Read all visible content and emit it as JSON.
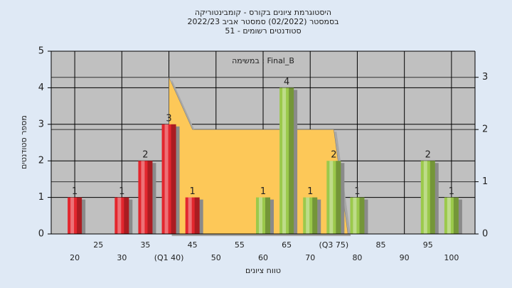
{
  "chart_data": {
    "type": "bar",
    "title": [
      "היסטוגרמת ציונים בקורס - קומבינטוריקה",
      "בסמסטר  (02/2022)  סמסטר אביב 2022/23",
      "סטודנטים רשומים - 51"
    ],
    "annotation": "במשימה : Final_B",
    "y_label": "מספר סטודנטים",
    "x_label": "טווח ציונים",
    "x": [
      20,
      30,
      35,
      40,
      45,
      60,
      65,
      70,
      75,
      80,
      95,
      100
    ],
    "values": [
      1,
      1,
      2,
      3,
      1,
      1,
      4,
      1,
      2,
      1,
      2,
      1
    ],
    "colors": [
      "#e3262d",
      "#e3262d",
      "#e3262d",
      "#e3262d",
      "#e3262d",
      "#9bc94b",
      "#9bc94b",
      "#9bc94b",
      "#9bc94b",
      "#9bc94b",
      "#9bc94b",
      "#9bc94b"
    ],
    "overlay": {
      "type": "area",
      "axis": "y2",
      "color": "#fdc858",
      "x": [
        40,
        40,
        45,
        75,
        78
      ],
      "values": [
        0,
        3,
        2,
        2,
        0
      ]
    },
    "xlim": [
      15,
      105
    ],
    "xticks": [
      20,
      25,
      30,
      35,
      {
        "value": 40,
        "label": "(Q1 40)"
      },
      45,
      50,
      55,
      60,
      65,
      70,
      {
        "value": 75,
        "label": "(Q3 75)"
      },
      80,
      85,
      90,
      95,
      100
    ],
    "ylim": [
      0,
      5
    ],
    "yticks": [
      0,
      1,
      2,
      3,
      4,
      5
    ],
    "y2lim": [
      0,
      3.5
    ],
    "y2ticks": [
      0,
      1,
      2,
      3
    ],
    "grid": true
  }
}
